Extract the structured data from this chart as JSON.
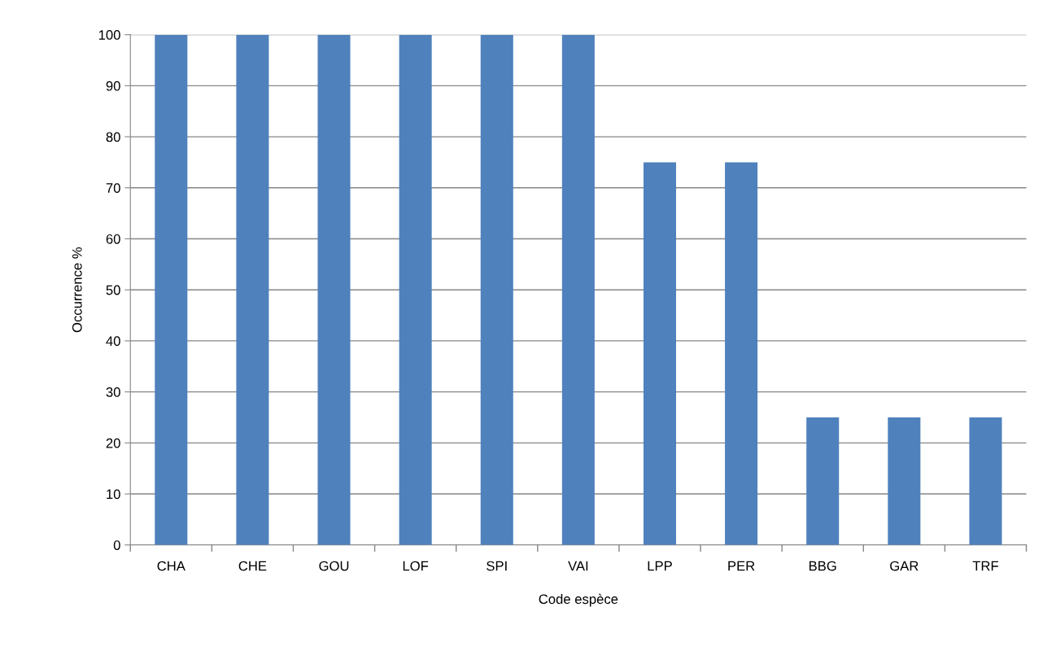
{
  "chart_data": {
    "type": "bar",
    "xlabel": "Code espèce",
    "ylabel": "Occurrence %",
    "categories": [
      "CHA",
      "CHE",
      "GOU",
      "LOF",
      "SPI",
      "VAI",
      "LPP",
      "PER",
      "BBG",
      "GAR",
      "TRF"
    ],
    "values": [
      100,
      100,
      100,
      100,
      100,
      100,
      75,
      75,
      25,
      25,
      25
    ],
    "color": "#4f81bd",
    "ylim": [
      0,
      100
    ],
    "yticks": [
      0,
      10,
      20,
      30,
      40,
      50,
      60,
      70,
      80,
      90,
      100
    ],
    "grid": "y",
    "legend": false
  }
}
